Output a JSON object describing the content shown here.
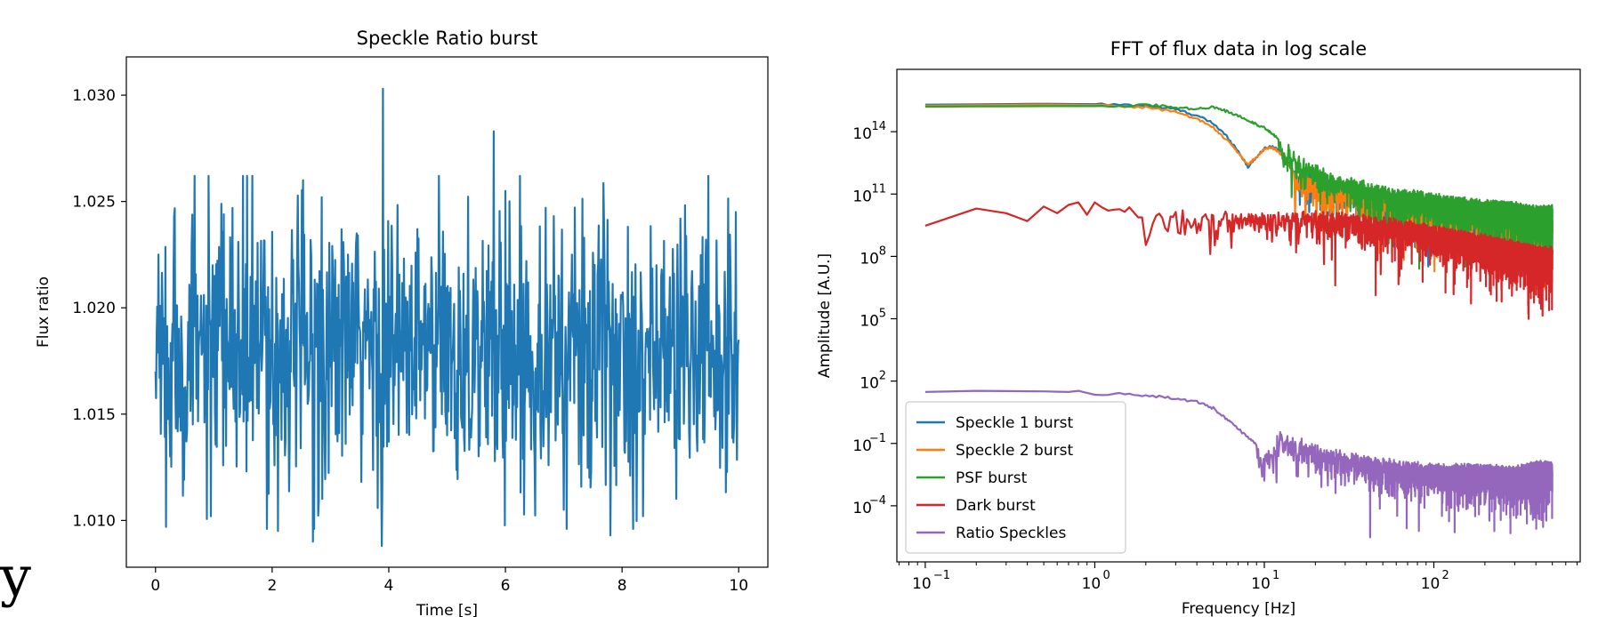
{
  "stray_glyph": "y",
  "chart_data": [
    {
      "type": "line",
      "title": "Speckle Ratio burst",
      "xlabel": "Time [s]",
      "ylabel": "Flux ratio",
      "xlim": [
        -0.5,
        10.5
      ],
      "ylim": [
        1.0078,
        1.0318
      ],
      "xticks": [
        0,
        2,
        4,
        6,
        8,
        10
      ],
      "xtick_labels": [
        "0",
        "2",
        "4",
        "6",
        "8",
        "10"
      ],
      "yticks": [
        1.01,
        1.015,
        1.02,
        1.025,
        1.03
      ],
      "ytick_labels": [
        "1.010",
        "1.015",
        "1.020",
        "1.025",
        "1.030"
      ],
      "grid": false,
      "series": [
        {
          "color": "#1f77b4",
          "sample_interval": 0.01,
          "x_range": [
            0,
            10
          ],
          "mean": 1.018,
          "std": 0.0032,
          "peaks": [
            {
              "x": 0.0,
              "y": 1.017
            },
            {
              "x": 0.05,
              "y": 1.0225
            },
            {
              "x": 0.18,
              "y": 1.0097
            },
            {
              "x": 0.32,
              "y": 1.0243
            },
            {
              "x": 0.95,
              "y": 1.0102
            },
            {
              "x": 2.1,
              "y": 1.0095
            },
            {
              "x": 2.7,
              "y": 1.009
            },
            {
              "x": 2.85,
              "y": 1.0252
            },
            {
              "x": 3.9,
              "y": 1.0303
            },
            {
              "x": 3.88,
              "y": 1.0088
            },
            {
              "x": 5.8,
              "y": 1.0283
            },
            {
              "x": 6.0,
              "y": 1.0255
            },
            {
              "x": 7.0,
              "y": 1.0105
            },
            {
              "x": 7.8,
              "y": 1.0093
            },
            {
              "x": 9.0,
              "y": 1.0242
            },
            {
              "x": 9.95,
              "y": 1.0245
            },
            {
              "x": 10.0,
              "y": 1.0185
            }
          ]
        }
      ]
    },
    {
      "type": "line",
      "title": "FFT of flux data in log scale",
      "xlabel": "Frequency [Hz]",
      "ylabel": "Amplitude [A.U.]",
      "xscale": "log",
      "yscale": "log",
      "xlim": [
        0.068,
        730
      ],
      "ylim": [
        2e-07,
        1e+17
      ],
      "xticks": [
        0.1,
        1,
        10,
        100
      ],
      "xtick_labels": [
        "10",
        "10",
        "10",
        "10"
      ],
      "xtick_exponents": [
        "−1",
        "0",
        "1",
        "2"
      ],
      "yticks": [
        0.0001,
        0.1,
        100.0,
        100000.0,
        100000000.0,
        100000000000.0,
        100000000000000.0
      ],
      "ytick_labels": [
        "10",
        "10",
        "10",
        "10",
        "10",
        "10",
        "10"
      ],
      "ytick_exponents": [
        "−4",
        "−1",
        "2",
        "5",
        "8",
        "11",
        "14"
      ],
      "legend": "lower-left",
      "grid": false,
      "series": [
        {
          "name": "Speckle 1 burst",
          "color": "#1f77b4",
          "x": [
            0.1,
            0.5,
            1,
            2,
            3,
            4,
            5,
            6,
            7,
            8,
            9,
            10,
            11,
            12,
            13,
            14,
            15,
            16,
            18,
            20,
            25,
            30,
            40,
            50,
            70,
            100,
            150,
            200,
            300,
            400,
            500
          ],
          "y": [
            2000000000000000.0,
            2200000000000000.0,
            2100000000000000.0,
            1800000000000000.0,
            1200000000000000.0,
            600000000000000.0,
            250000000000000.0,
            60000000000000.0,
            12000000000000.0,
            2000000000000.0,
            6000000000000.0,
            15000000000000.0,
            20000000000000.0,
            15000000000000.0,
            8000000000000.0,
            3000000000000.0,
            1000000000000.0,
            800000000000.0,
            1000000000000.0,
            600000000000.0,
            200000000000.0,
            300000000000.0,
            100000000000.0,
            150000000000.0,
            50000000000.0,
            40000000000.0,
            30000000000.0,
            20000000000.0,
            15000000000.0,
            10000000000.0,
            8000000000.0
          ],
          "noise_from": 15
        },
        {
          "name": "Speckle 2 burst",
          "color": "#ff7f0e",
          "x": [
            0.1,
            0.5,
            1,
            2,
            3,
            4,
            5,
            6,
            7,
            8,
            9,
            10,
            11,
            12,
            13,
            14,
            15,
            16,
            18,
            20,
            25,
            30,
            40,
            50,
            70,
            100,
            150,
            200,
            300,
            400,
            500
          ],
          "y": [
            1800000000000000.0,
            2000000000000000.0,
            1900000000000000.0,
            1500000000000000.0,
            900000000000000.0,
            400000000000000.0,
            160000000000000.0,
            40000000000000.0,
            10000000000000.0,
            2500000000000.0,
            6000000000000.0,
            14000000000000.0,
            18000000000000.0,
            12000000000000.0,
            6000000000000.0,
            2500000000000.0,
            900000000000.0,
            700000000000.0,
            900000000000.0,
            500000000000.0,
            180000000000.0,
            250000000000.0,
            90000000000.0,
            120000000000.0,
            40000000000.0,
            30000000000.0,
            25000000000.0,
            15000000000.0,
            12000000000.0,
            9000000000.0,
            7000000000.0
          ],
          "noise_from": 15
        },
        {
          "name": "PSF burst",
          "color": "#2ca02c",
          "x": [
            0.1,
            0.5,
            1,
            1.5,
            2,
            3,
            4,
            5,
            7,
            10,
            13,
            16,
            20,
            25,
            30,
            40,
            50,
            70,
            100,
            150,
            200,
            300,
            400,
            500
          ],
          "y": [
            1600000000000000.0,
            1700000000000000.0,
            1700000000000000.0,
            1800000000000000.0,
            2000000000000000.0,
            1500000000000000.0,
            1200000000000000.0,
            1600000000000000.0,
            600000000000000.0,
            150000000000000.0,
            30000000000000.0,
            6000000000000.0,
            2000000000000.0,
            1000000000000.0,
            600000000000.0,
            300000000000.0,
            200000000000.0,
            120000000000.0,
            80000000000.0,
            50000000000.0,
            40000000000.0,
            30000000000.0,
            20000000000.0,
            20000000000.0
          ],
          "noise_from": 12
        },
        {
          "name": "Dark burst",
          "color": "#d62728",
          "x": [
            0.1,
            0.2,
            0.3,
            0.4,
            0.5,
            0.6,
            0.7,
            0.8,
            0.9,
            1,
            1.2,
            1.5,
            2,
            3,
            5,
            7,
            10,
            15,
            20,
            30,
            50,
            70,
            100,
            150,
            200,
            300,
            400,
            500
          ],
          "y": [
            3000000000.0,
            20000000000.0,
            12000000000.0,
            5000000000.0,
            25000000000.0,
            12000000000.0,
            30000000000.0,
            40000000000.0,
            10000000000.0,
            40000000000.0,
            15000000000.0,
            20000000000.0,
            15000000000.0,
            16000000000.0,
            12000000000.0,
            15000000000.0,
            12000000000.0,
            12000000000.0,
            12000000000.0,
            10000000000.0,
            6000000000.0,
            4000000000.0,
            2500000000.0,
            1200000000.0,
            800000000.0,
            400000000.0,
            250000000.0,
            200000000.0
          ],
          "noise_from": 1.5
        },
        {
          "name": "Ratio Speckles",
          "color": "#9467bd",
          "x": [
            0.1,
            0.2,
            0.3,
            0.5,
            0.7,
            0.8,
            1,
            1.5,
            2,
            3,
            4,
            5,
            6,
            7,
            8,
            9,
            10,
            11,
            12,
            15,
            20,
            30,
            50,
            70,
            100,
            150,
            200,
            300,
            400,
            500
          ],
          "y": [
            30,
            34,
            33,
            32,
            30,
            34,
            22,
            25,
            20,
            15,
            10,
            5,
            1.5,
            0.5,
            0.2,
            0.08,
            0.02,
            0.05,
            0.3,
            0.15,
            0.08,
            0.03,
            0.015,
            0.01,
            0.008,
            0.008,
            0.007,
            0.006,
            0.01,
            0.01
          ],
          "noise_from": 9
        }
      ]
    }
  ]
}
